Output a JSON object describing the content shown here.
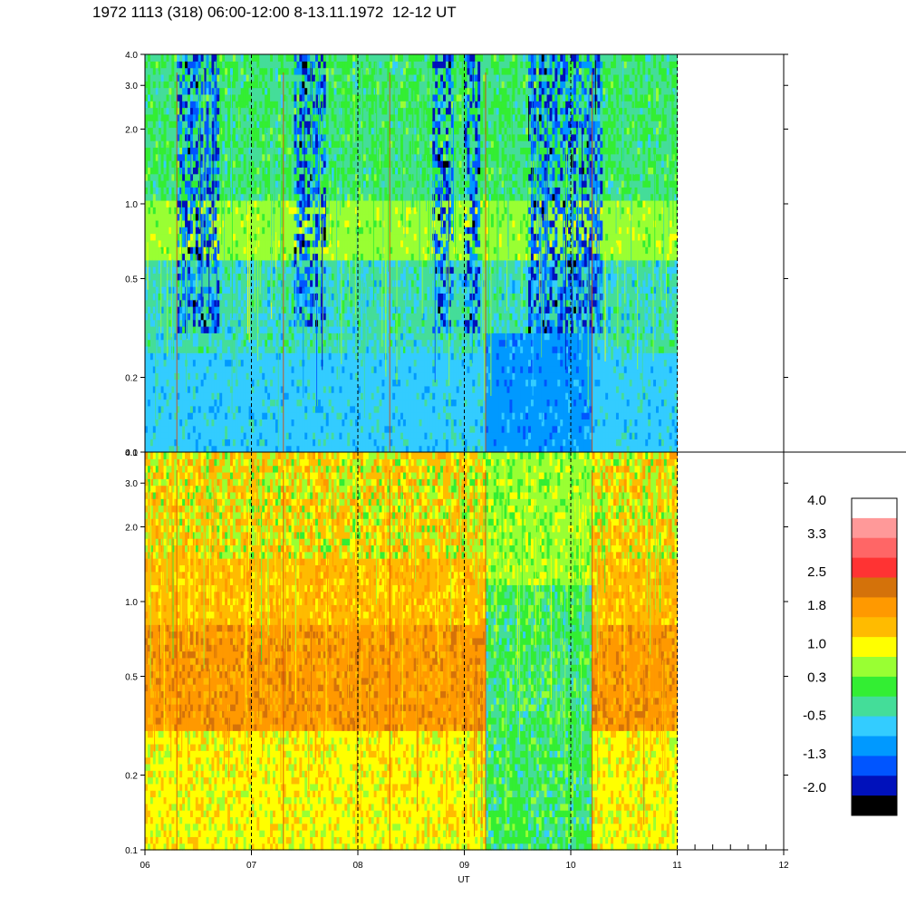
{
  "title": "1972 1113 (318) 06:00-12:00 8-13.11.1972  12-12 UT",
  "chart_data": [
    {
      "type": "heatmap",
      "panel": "top",
      "xlim": [
        6,
        12
      ],
      "data_x_end": 11.0,
      "ylim": [
        0.1,
        4.0
      ],
      "y_scale": "log",
      "y_ticks": [
        {
          "value": 4.0,
          "label": "4.0"
        },
        {
          "value": 3.0,
          "label": "3.0"
        },
        {
          "value": 2.0,
          "label": "2.0"
        },
        {
          "value": 1.0,
          "label": "1.0"
        },
        {
          "value": 0.5,
          "label": "0.5"
        },
        {
          "value": 0.2,
          "label": "0.2"
        },
        {
          "value": 0.1,
          "label": "0.1"
        }
      ],
      "hour_markers": [
        7,
        8,
        9,
        10,
        11
      ],
      "summary": "mostly cyan/green (about -0.5 to 0.3), bright-green band near 0.6-1.0, dark-blue streaks around 06:30, 07:30, 09:00-10:30"
    },
    {
      "type": "heatmap",
      "panel": "bottom",
      "xlim": [
        6,
        12
      ],
      "data_x_end": 11.0,
      "ylim": [
        0.1,
        4.0
      ],
      "y_scale": "log",
      "y_ticks": [
        {
          "value": 4.0,
          "label": "4.0"
        },
        {
          "value": 3.0,
          "label": "3.0"
        },
        {
          "value": 2.0,
          "label": "2.0"
        },
        {
          "value": 1.0,
          "label": "1.0"
        },
        {
          "value": 0.5,
          "label": "0.5"
        },
        {
          "value": 0.2,
          "label": "0.2"
        },
        {
          "value": 0.1,
          "label": "0.1"
        }
      ],
      "x_ticks": [
        {
          "value": 6,
          "label": "06"
        },
        {
          "value": 7,
          "label": "07"
        },
        {
          "value": 8,
          "label": "08"
        },
        {
          "value": 9,
          "label": "09"
        },
        {
          "value": 10,
          "label": "10"
        },
        {
          "value": 11,
          "label": "11"
        },
        {
          "value": 12,
          "label": "12"
        }
      ],
      "xlabel": "UT",
      "hour_markers": [
        7,
        8,
        9,
        10,
        11
      ],
      "summary": "mostly yellow/orange (about 1.0 to 1.8), orange band near 0.3-0.7, green/cyan region 09:15-10:15"
    }
  ],
  "colorbar": {
    "colors": [
      "#ffffff",
      "#ff9999",
      "#ff6666",
      "#ff3333",
      "#d4720a",
      "#ff9900",
      "#ffbb00",
      "#ffff00",
      "#99ff33",
      "#33ee33",
      "#44dd99",
      "#33ccff",
      "#0099ff",
      "#0055ff",
      "#0011bb",
      "#000000"
    ],
    "labels": [
      "4.0",
      "3.3",
      "2.5",
      "1.8",
      "1.0",
      "0.3",
      "-0.5",
      "-1.3",
      "-2.0"
    ],
    "label_values": [
      4.0,
      3.3,
      2.5,
      1.8,
      1.0,
      0.3,
      -0.5,
      -1.3,
      -2.0
    ]
  }
}
